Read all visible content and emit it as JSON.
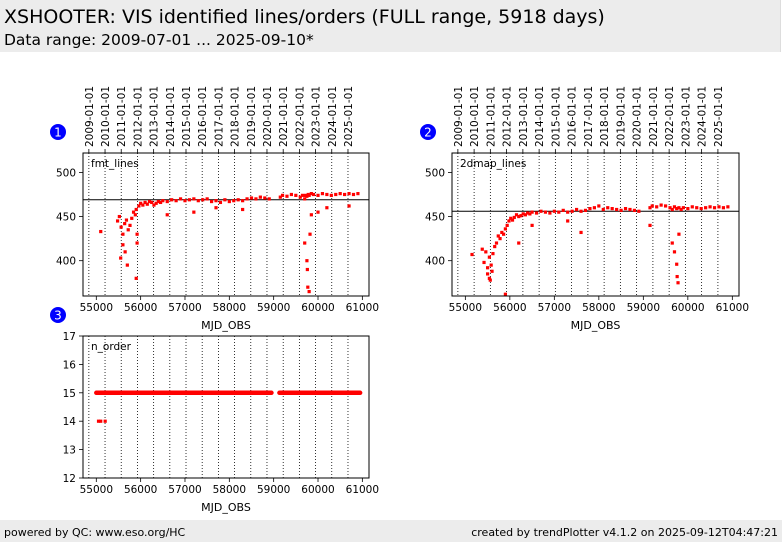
{
  "header": {
    "title": "XSHOOTER: VIS identified lines/orders (FULL range, 5918 days)",
    "subtitle": "Data range: 2009-07-01 ... 2025-09-10*"
  },
  "footer": {
    "left": "powered by QC: www.eso.org/HC",
    "right": "created by trendPlotter v4.1.2 on 2025-09-12T04:47:21"
  },
  "colors": {
    "data": "#ff0000",
    "reference": "#000000",
    "badge": "#0000ff",
    "header_bg": "#ececec"
  },
  "chart_data": [
    {
      "type": "scatter",
      "badge": "1",
      "panel_label": "fmt_lines",
      "xlabel": "MJD_OBS",
      "xlim": [
        54700,
        61150
      ],
      "ylim": [
        360,
        522
      ],
      "xticks": [
        55000,
        56000,
        57000,
        58000,
        59000,
        60000,
        61000
      ],
      "yticks": [
        400,
        450,
        500
      ],
      "reference_line": 469,
      "date_ticks": [
        "2009-01-01",
        "2010-01-01",
        "2011-01-01",
        "2012-01-01",
        "2013-01-01",
        "2014-01-01",
        "2015-01-01",
        "2016-01-01",
        "2017-01-01",
        "2018-01-01",
        "2019-01-01",
        "2020-01-01",
        "2021-01-01",
        "2022-01-01",
        "2023-01-01",
        "2024-01-01",
        "2025-01-01"
      ],
      "date_ticks_mjd": [
        54832,
        55197,
        55562,
        55927,
        56293,
        56658,
        57023,
        57388,
        57754,
        58119,
        58484,
        58849,
        59215,
        59580,
        59945,
        60310,
        60676
      ],
      "series": [
        {
          "x": [
            55100,
            55480,
            55520,
            55560,
            55600,
            55640,
            55680,
            55720,
            55760,
            55800,
            55840,
            55880,
            55900,
            55920,
            55960,
            56000,
            56050,
            56100,
            56150,
            56200,
            56250,
            56300,
            56350,
            56400,
            56450,
            56500,
            56600,
            56700,
            56800,
            56900,
            57000,
            57100,
            57200,
            57300,
            57400,
            57500,
            57600,
            57700,
            57800,
            57900,
            58000,
            58100,
            58200,
            58300,
            58400,
            58500,
            58600,
            58700,
            58800,
            58900,
            59150,
            59200,
            59300,
            59400,
            59500,
            59600,
            59650,
            59700,
            59720,
            59750,
            59780,
            59800,
            59850,
            59900,
            60000,
            60100,
            60200,
            60300,
            60400,
            60500,
            60600,
            60700,
            60800,
            60900,
            55550,
            55600,
            55650,
            55700,
            55900,
            55920,
            56600,
            57200,
            57700,
            58300,
            59700,
            59750,
            59760,
            59770,
            59800,
            59820,
            59850,
            60000,
            60200,
            60700
          ],
          "y": [
            433,
            445,
            450,
            438,
            430,
            442,
            446,
            435,
            440,
            448,
            455,
            452,
            458,
            430,
            462,
            465,
            463,
            466,
            464,
            467,
            466,
            463,
            465,
            467,
            466,
            468,
            467,
            469,
            468,
            470,
            468,
            469,
            470,
            468,
            469,
            470,
            467,
            468,
            466,
            469,
            467,
            468,
            469,
            468,
            470,
            471,
            470,
            472,
            471,
            470,
            472,
            474,
            473,
            475,
            474,
            472,
            474,
            470,
            474,
            473,
            475,
            474,
            476,
            475,
            474,
            476,
            475,
            474,
            475,
            476,
            475,
            476,
            475,
            476,
            403,
            418,
            410,
            395,
            380,
            420,
            452,
            455,
            460,
            458,
            420,
            400,
            390,
            370,
            365,
            430,
            452,
            455,
            460,
            462
          ]
        }
      ]
    },
    {
      "type": "scatter",
      "badge": "2",
      "panel_label": "2dmap_lines",
      "xlabel": "MJD_OBS",
      "xlim": [
        54700,
        61150
      ],
      "ylim": [
        360,
        522
      ],
      "xticks": [
        55000,
        56000,
        57000,
        58000,
        59000,
        60000,
        61000
      ],
      "yticks": [
        400,
        450,
        500
      ],
      "reference_line": 456,
      "date_ticks": [
        "2009-01-01",
        "2010-01-01",
        "2011-01-01",
        "2012-01-01",
        "2013-01-01",
        "2014-01-01",
        "2015-01-01",
        "2016-01-01",
        "2017-01-01",
        "2018-01-01",
        "2019-01-01",
        "2020-01-01",
        "2021-01-01",
        "2022-01-01",
        "2023-01-01",
        "2024-01-01",
        "2025-01-01"
      ],
      "date_ticks_mjd": [
        54832,
        55197,
        55562,
        55927,
        56293,
        56658,
        57023,
        57388,
        57754,
        58119,
        58484,
        58849,
        59215,
        59580,
        59945,
        60310,
        60676
      ],
      "series": [
        {
          "x": [
            55150,
            55380,
            55420,
            55460,
            55500,
            55540,
            55580,
            55620,
            55660,
            55700,
            55740,
            55780,
            55820,
            55860,
            55900,
            55940,
            55980,
            56020,
            56060,
            56100,
            56150,
            56200,
            56250,
            56300,
            56350,
            56400,
            56450,
            56500,
            56600,
            56700,
            56800,
            56900,
            57000,
            57100,
            57200,
            57300,
            57400,
            57500,
            57600,
            57700,
            57800,
            57900,
            58000,
            58100,
            58200,
            58300,
            58400,
            58500,
            58600,
            58700,
            58800,
            58900,
            59150,
            59200,
            59300,
            59400,
            59500,
            59600,
            59650,
            59700,
            59750,
            59800,
            59850,
            59900,
            60000,
            60100,
            60200,
            60300,
            60400,
            60500,
            60600,
            60700,
            60800,
            60900,
            55500,
            55540,
            55560,
            55600,
            55900,
            56200,
            56500,
            57300,
            57600,
            59150,
            59650,
            59700,
            59750,
            59760,
            59780,
            59800
          ],
          "y": [
            407,
            413,
            398,
            410,
            392,
            404,
            395,
            408,
            416,
            420,
            428,
            425,
            432,
            430,
            436,
            440,
            445,
            448,
            446,
            449,
            452,
            450,
            451,
            453,
            452,
            454,
            453,
            455,
            454,
            456,
            455,
            454,
            456,
            455,
            457,
            455,
            456,
            458,
            456,
            457,
            459,
            460,
            462,
            458,
            460,
            459,
            458,
            457,
            459,
            458,
            457,
            456,
            460,
            462,
            461,
            463,
            462,
            460,
            458,
            461,
            459,
            460,
            458,
            460,
            459,
            461,
            460,
            459,
            460,
            461,
            460,
            461,
            460,
            461,
            385,
            380,
            378,
            388,
            362,
            420,
            440,
            445,
            432,
            440,
            420,
            410,
            396,
            382,
            375,
            430
          ]
        }
      ]
    },
    {
      "type": "scatter",
      "badge": "3",
      "panel_label": "n_order",
      "xlabel": "MJD_OBS",
      "xlim": [
        54700,
        61150
      ],
      "ylim": [
        12,
        17
      ],
      "xticks": [
        55000,
        56000,
        57000,
        58000,
        59000,
        60000,
        61000
      ],
      "yticks": [
        12,
        13,
        14,
        15,
        16,
        17
      ],
      "date_ticks_mjd": [
        54832,
        55197,
        55562,
        55927,
        56293,
        56658,
        57023,
        57388,
        57754,
        58119,
        58484,
        58849,
        59215,
        59580,
        59945,
        60310,
        60676
      ],
      "segments": [
        [
          55000,
          58950,
          15
        ],
        [
          59130,
          60950,
          15
        ]
      ],
      "series": [
        {
          "x": [
            55050,
            55100,
            55200
          ],
          "y": [
            14,
            14,
            14
          ]
        }
      ]
    }
  ]
}
